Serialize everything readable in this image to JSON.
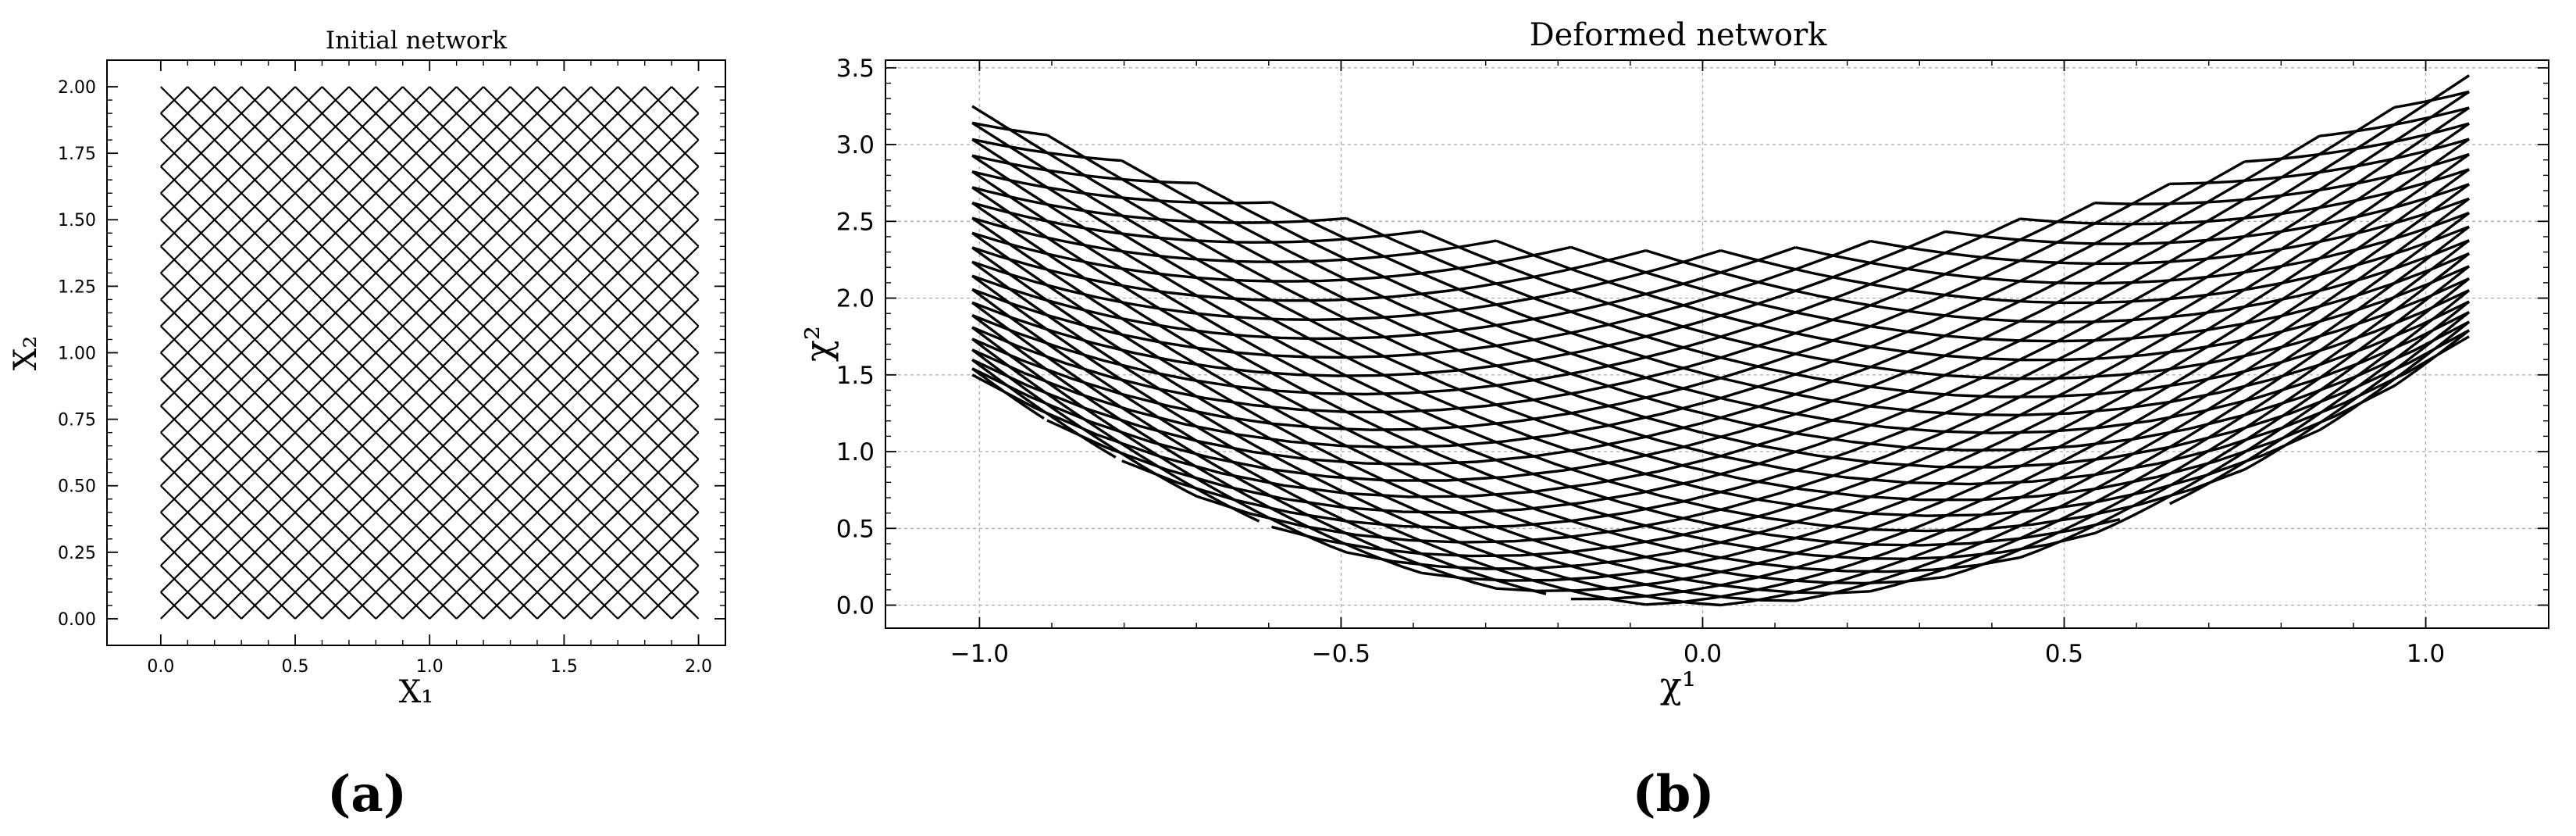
{
  "chart_data": [
    {
      "type": "line",
      "panel_label": "(a)",
      "title": "Initial network",
      "xlabel": "X₁",
      "ylabel": "X₂",
      "xlim": [
        -0.2,
        2.1
      ],
      "ylim": [
        -0.1,
        2.1
      ],
      "xticks": [
        0.0,
        0.5,
        1.0,
        1.5,
        2.0
      ],
      "xtick_labels": [
        "0.0",
        "0.5",
        "1.0",
        "1.5",
        "2.0"
      ],
      "yticks": [
        0.0,
        0.25,
        0.5,
        0.75,
        1.0,
        1.25,
        1.5,
        1.75,
        2.0
      ],
      "ytick_labels": [
        "0.00",
        "0.25",
        "0.50",
        "0.75",
        "1.00",
        "1.25",
        "1.50",
        "1.75",
        "2.00"
      ],
      "grid": false,
      "network": {
        "domain_x": [
          0.0,
          2.0
        ],
        "domain_y": [
          0.0,
          2.0
        ],
        "diagonal_spacing": 0.1,
        "family_1": "lines of slope +1 (X₂ − X₁ = c)",
        "family_2": "lines of slope −1 (X₂ + X₁ = c)",
        "line_color": "#000000"
      }
    },
    {
      "type": "line",
      "panel_label": "(b)",
      "title": "Deformed network",
      "xlabel": "χ¹",
      "ylabel": "χ²",
      "xlim": [
        -1.13,
        1.17
      ],
      "ylim": [
        -0.15,
        3.55
      ],
      "xticks": [
        -1.0,
        -0.5,
        0.0,
        0.5,
        1.0
      ],
      "xtick_labels": [
        "−1.0",
        "−0.5",
        "0.0",
        "0.5",
        "1.0"
      ],
      "yticks": [
        0.0,
        0.5,
        1.0,
        1.5,
        2.0,
        2.5,
        3.0,
        3.5
      ],
      "ytick_labels": [
        "0.0",
        "0.5",
        "1.0",
        "1.5",
        "2.0",
        "2.5",
        "3.0",
        "3.5"
      ],
      "grid": true,
      "network": {
        "mapping_source": "panel (a) fibres",
        "chi1_left": -1.01,
        "chi1_right": 1.06,
        "boundary_top": {
          "left": 3.25,
          "min": 2.31,
          "right": 3.45
        },
        "boundary_bottom": {
          "left": 1.5,
          "min": 0.0,
          "right": 1.75
        },
        "line_color": "#000000"
      }
    }
  ]
}
